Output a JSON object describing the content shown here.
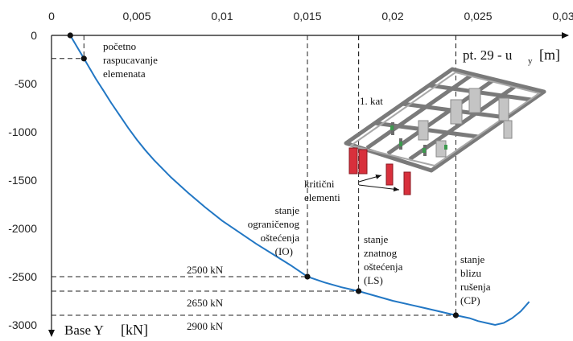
{
  "chart_data": {
    "type": "line",
    "x_axis": {
      "ticks": [
        "0",
        "0,005",
        "0,01",
        "0,015",
        "0,02",
        "0,025",
        "0,03"
      ],
      "label": "pt. 29 - u",
      "label_sub": "y",
      "unit": "[m]",
      "lim": [
        0,
        0.03
      ]
    },
    "y_axis": {
      "ticks": [
        "0",
        "-500",
        "-1000",
        "-1500",
        "-2000",
        "-2500",
        "-3000"
      ],
      "label": "Base Y",
      "unit": "[kN]",
      "lim": [
        -3000,
        0
      ]
    },
    "series": [
      {
        "color": "#2277c4",
        "x": [
          0.0011,
          0.0015,
          0.0019,
          0.0023,
          0.0026,
          0.003,
          0.0035,
          0.004,
          0.0045,
          0.005,
          0.0055,
          0.006,
          0.007,
          0.008,
          0.009,
          0.01,
          0.011,
          0.012,
          0.013,
          0.014,
          0.015,
          0.016,
          0.017,
          0.018,
          0.019,
          0.02,
          0.021,
          0.022,
          0.0237,
          0.0245,
          0.025,
          0.0255,
          0.026,
          0.0265,
          0.027,
          0.0275,
          0.028
        ],
        "y": [
          0,
          -120,
          -240,
          -360,
          -450,
          -560,
          -700,
          -830,
          -960,
          -1080,
          -1190,
          -1290,
          -1470,
          -1630,
          -1780,
          -1920,
          -2040,
          -2160,
          -2270,
          -2380,
          -2500,
          -2560,
          -2610,
          -2650,
          -2700,
          -2750,
          -2790,
          -2830,
          -2900,
          -2930,
          -2960,
          -2980,
          -3000,
          -2980,
          -2930,
          -2860,
          -2760
        ]
      }
    ],
    "points": [
      {
        "x": 0.0011,
        "y": 0
      },
      {
        "x": 0.0019,
        "y": -240
      },
      {
        "x": 0.015,
        "y": -2500
      },
      {
        "x": 0.018,
        "y": -2650
      },
      {
        "x": 0.0237,
        "y": -2900
      }
    ],
    "grid": false
  },
  "annotations": {
    "crack": [
      "početno",
      "raspucavanje",
      "elemenata"
    ],
    "io": [
      "stanje",
      "ograničenog",
      "oštećenja",
      "(IO)"
    ],
    "ls": [
      "stanje",
      "znatnog",
      "oštećenja",
      "(LS)"
    ],
    "cp": [
      "stanje",
      "blizu",
      "rušenja",
      "(CP)"
    ],
    "force_io": "2500 kN",
    "force_ls": "2650 kN",
    "force_cp": "2900 kN",
    "floor": "1. kat",
    "critical": [
      "kritični",
      "elementi"
    ]
  }
}
